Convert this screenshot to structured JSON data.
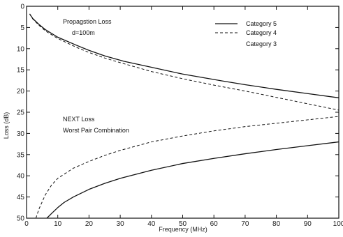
{
  "chart_data": {
    "type": "line",
    "title": "",
    "xlabel": "Frequency (MHz)",
    "ylabel": "Loss (dB)",
    "xlim": [
      0,
      100
    ],
    "ylim": [
      50,
      0
    ],
    "y_inverted": true,
    "grid": false,
    "x_ticks": [
      "0",
      "10",
      "20",
      "30",
      "40",
      "50",
      "60",
      "70",
      "80",
      "90",
      "100"
    ],
    "y_ticks": [
      "0",
      "5",
      "10",
      "15",
      "20",
      "25",
      "30",
      "35",
      "40",
      "45",
      "50"
    ],
    "legend": {
      "placement": "top-right",
      "entries": [
        {
          "label": "Category 5",
          "style": "solid"
        },
        {
          "label": "Category 4",
          "style": "dashed"
        },
        {
          "label": "Category 3",
          "style": "none"
        }
      ]
    },
    "annotations": [
      {
        "id": "prop1",
        "text": "Propagstion Loss"
      },
      {
        "id": "prop2",
        "text": "d=100m"
      },
      {
        "id": "next1",
        "text": "NEXT Loss"
      },
      {
        "id": "next2",
        "text": "Worst Pair Combination"
      }
    ],
    "series": [
      {
        "name": "Category 5",
        "group": "Propagation Loss",
        "style": "solid",
        "x": [
          1,
          2,
          4,
          6,
          10,
          16,
          20,
          25,
          31.25,
          40,
          50,
          62.5,
          70,
          80,
          90,
          100
        ],
        "y": [
          1.8,
          2.9,
          4.3,
          5.5,
          7.3,
          9.2,
          10.4,
          11.7,
          13.0,
          14.4,
          16.0,
          17.6,
          18.5,
          19.6,
          20.6,
          21.6
        ]
      },
      {
        "name": "Category 4",
        "group": "Propagation Loss",
        "style": "dashed",
        "x": [
          1,
          2,
          4,
          6,
          10,
          16,
          20,
          25,
          30,
          40,
          50,
          60,
          70,
          80,
          90,
          100
        ],
        "y": [
          1.8,
          3.0,
          4.5,
          5.8,
          7.6,
          9.7,
          10.9,
          12.2,
          13.3,
          15.4,
          17.1,
          18.6,
          20.0,
          21.5,
          23.0,
          24.5
        ]
      },
      {
        "name": "Category 5",
        "group": "NEXT Loss",
        "style": "solid",
        "x": [
          6.5,
          8,
          10,
          12,
          15,
          20,
          25,
          30,
          40,
          50,
          60,
          70,
          80,
          90,
          100
        ],
        "y": [
          50,
          48.9,
          47.5,
          46.3,
          45.0,
          43.2,
          41.8,
          40.6,
          38.7,
          37.1,
          35.9,
          34.8,
          33.8,
          32.9,
          32.0
        ]
      },
      {
        "name": "Category 4",
        "group": "NEXT Loss",
        "style": "dashed",
        "x": [
          3,
          4,
          6,
          8,
          10,
          15,
          20,
          25,
          30,
          40,
          50,
          60,
          70,
          80,
          90,
          100
        ],
        "y": [
          50,
          47.8,
          44.5,
          42.2,
          40.6,
          38.2,
          36.6,
          35.2,
          34.0,
          32.0,
          30.6,
          29.4,
          28.4,
          27.6,
          26.8,
          26.0
        ]
      }
    ]
  }
}
